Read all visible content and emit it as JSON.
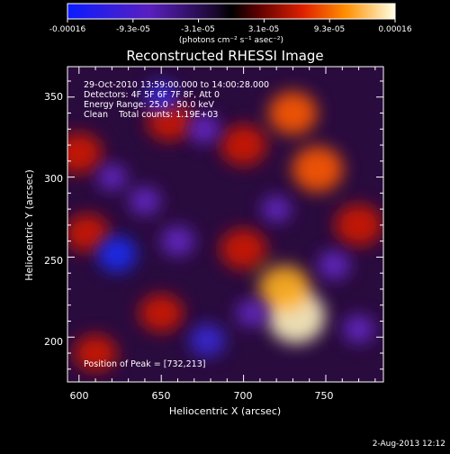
{
  "colorbar": {
    "ticks": [
      "-0.00016",
      "-9.3e-05",
      "-3.1e-05",
      "3.1e-05",
      "9.3e-05",
      "0.00016"
    ],
    "unit_label": "(photons cm⁻² s⁻¹ asec⁻²)",
    "colors": [
      "#0a1cff",
      "#4a1aa8",
      "#12051e",
      "#1a0000",
      "#d21e00",
      "#ff7a00",
      "#ffd040",
      "#ffffe8"
    ]
  },
  "chart_data": {
    "type": "heatmap",
    "title": "Reconstructed RHESSI Image",
    "xlabel": "Heliocentric X (arcsec)",
    "ylabel": "Heliocentric Y (arcsec)",
    "xlim": [
      593,
      785
    ],
    "ylim": [
      172,
      369
    ],
    "xticks": [
      "600",
      "650",
      "700",
      "750"
    ],
    "yticks": [
      "200",
      "250",
      "300",
      "350"
    ],
    "value_range": [
      -0.00016,
      0.00016
    ],
    "hot_spots": [
      {
        "x": 732,
        "y": 213,
        "value": 0.00016
      },
      {
        "x": 725,
        "y": 230,
        "value": 0.00011
      },
      {
        "x": 745,
        "y": 305,
        "value": 0.0001
      },
      {
        "x": 730,
        "y": 340,
        "value": 8e-05
      },
      {
        "x": 600,
        "y": 315,
        "value": 6e-05
      },
      {
        "x": 655,
        "y": 335,
        "value": 5e-05
      },
      {
        "x": 700,
        "y": 320,
        "value": 6e-05
      },
      {
        "x": 700,
        "y": 255,
        "value": 6e-05
      },
      {
        "x": 605,
        "y": 265,
        "value": 4e-05
      },
      {
        "x": 770,
        "y": 270,
        "value": 7e-05
      },
      {
        "x": 650,
        "y": 215,
        "value": 4e-05
      },
      {
        "x": 610,
        "y": 190,
        "value": 3e-05
      }
    ],
    "cold_spots": [
      {
        "x": 623,
        "y": 252,
        "value": -0.00016
      },
      {
        "x": 678,
        "y": 198,
        "value": -0.00012
      },
      {
        "x": 650,
        "y": 350,
        "value": -0.0001
      },
      {
        "x": 676,
        "y": 330,
        "value": -8e-05
      },
      {
        "x": 660,
        "y": 260,
        "value": -9e-05
      },
      {
        "x": 640,
        "y": 285,
        "value": -7e-05
      },
      {
        "x": 755,
        "y": 245,
        "value": -8e-05
      },
      {
        "x": 770,
        "y": 205,
        "value": -7e-05
      },
      {
        "x": 705,
        "y": 215,
        "value": -6e-05
      },
      {
        "x": 720,
        "y": 280,
        "value": -5e-05
      },
      {
        "x": 620,
        "y": 300,
        "value": -5e-05
      }
    ]
  },
  "annotations": {
    "time_range": "29-Oct-2010 13:59:00.000 to 14:00:28.000",
    "detectors": "Detectors: 4F 5F 6F 7F 8F, Att 0",
    "energy": "Energy Range: 25.0 - 50.0 keV",
    "method": "Clean    Total counts: 1.19E+03",
    "peak": "Position of Peak = [732,213]"
  },
  "date_stamp": "2-Aug-2013 12:12"
}
